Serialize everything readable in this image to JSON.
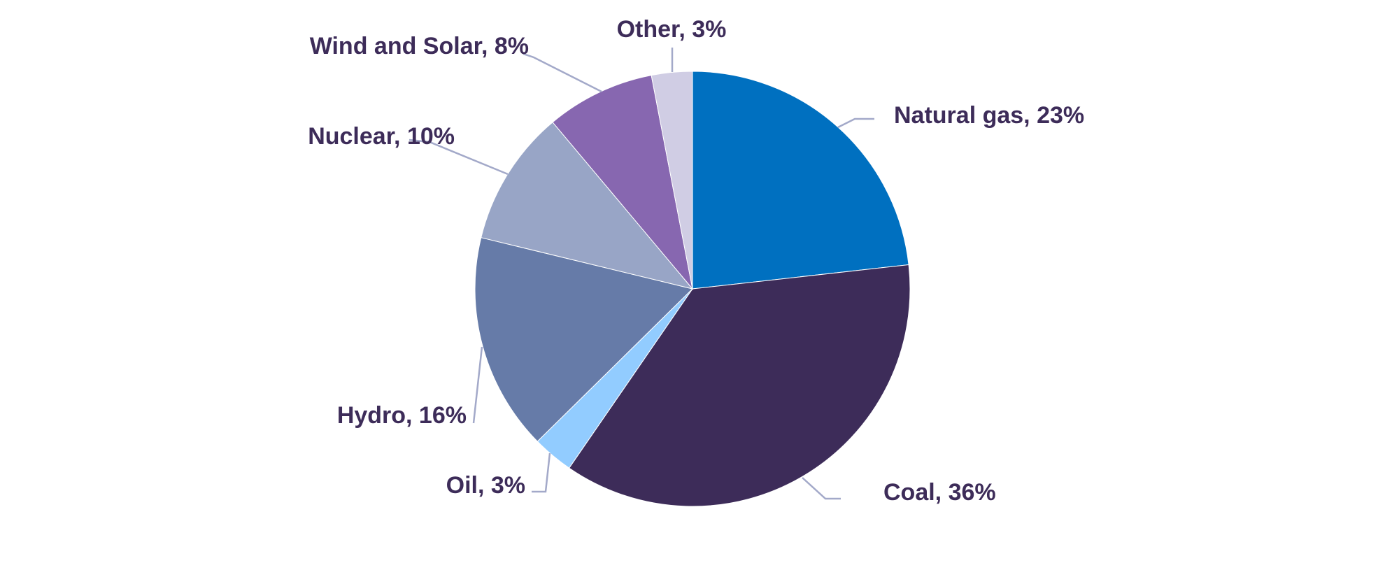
{
  "chart_data": {
    "type": "pie",
    "title": "",
    "start_angle_deg": 0,
    "direction": "clockwise",
    "slices": [
      {
        "label": "Natural gas",
        "value": 23,
        "display": "Natural gas, 23%",
        "color": "#0070c0"
      },
      {
        "label": "Coal",
        "value": 36,
        "display": "Coal, 36%",
        "color": "#3d2c59"
      },
      {
        "label": "Oil",
        "value": 3,
        "display": "Oil, 3%",
        "color": "#92ccff"
      },
      {
        "label": "Hydro",
        "value": 16,
        "display": "Hydro, 16%",
        "color": "#667ba8"
      },
      {
        "label": "Nuclear",
        "value": 10,
        "display": "Nuclear, 10%",
        "color": "#98a5c6"
      },
      {
        "label": "Wind and Solar",
        "value": 8,
        "display": "Wind and Solar, 8%",
        "color": "#8767b0"
      },
      {
        "label": "Other",
        "value": 3,
        "display": "Other, 3%",
        "color": "#d0cde4"
      }
    ],
    "legend": "none",
    "data_labels": "outside-with-leader-lines"
  }
}
